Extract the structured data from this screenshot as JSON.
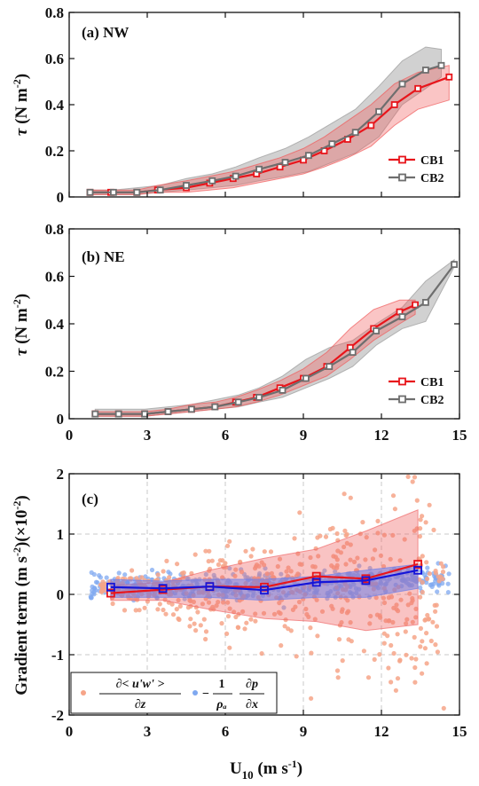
{
  "chart_data": [
    {
      "type": "line",
      "title": "(a) NW",
      "ylabel": "τ (N m⁻²)",
      "xlim": [
        0,
        15
      ],
      "ylim": [
        0,
        0.8
      ],
      "y_ticks": [
        "0",
        "0.2",
        "0.4",
        "0.6",
        "0.8"
      ],
      "grid": false,
      "legend_position": "lower-right",
      "series": [
        {
          "name": "CB1",
          "color": "#e8151b",
          "x": [
            0.8,
            1.6,
            2.6,
            3.4,
            4.5,
            5.4,
            6.3,
            7.2,
            8.1,
            9.0,
            9.8,
            10.7,
            11.6,
            12.5,
            13.4,
            14.6
          ],
          "y": [
            0.02,
            0.02,
            0.02,
            0.03,
            0.04,
            0.06,
            0.08,
            0.1,
            0.13,
            0.16,
            0.2,
            0.25,
            0.31,
            0.4,
            0.47,
            0.52
          ],
          "band_lower": [
            0.01,
            0.01,
            0.01,
            0.02,
            0.02,
            0.03,
            0.04,
            0.06,
            0.08,
            0.1,
            0.13,
            0.17,
            0.22,
            0.31,
            0.38,
            0.42
          ],
          "band_upper": [
            0.03,
            0.03,
            0.03,
            0.05,
            0.07,
            0.09,
            0.11,
            0.14,
            0.17,
            0.21,
            0.26,
            0.33,
            0.4,
            0.49,
            0.54,
            0.57
          ]
        },
        {
          "name": "CB2",
          "color": "#6e6e6e",
          "x": [
            0.8,
            1.7,
            2.6,
            3.5,
            4.5,
            5.5,
            6.4,
            7.3,
            8.3,
            9.2,
            10.1,
            11.0,
            11.9,
            12.8,
            13.7,
            14.3
          ],
          "y": [
            0.02,
            0.02,
            0.02,
            0.03,
            0.05,
            0.07,
            0.09,
            0.12,
            0.15,
            0.18,
            0.23,
            0.28,
            0.37,
            0.49,
            0.55,
            0.57
          ],
          "band_lower": [
            0.01,
            0.01,
            0.01,
            0.02,
            0.03,
            0.04,
            0.05,
            0.07,
            0.09,
            0.11,
            0.15,
            0.19,
            0.26,
            0.4,
            0.47,
            0.52
          ],
          "band_upper": [
            0.03,
            0.03,
            0.04,
            0.05,
            0.08,
            0.1,
            0.13,
            0.17,
            0.21,
            0.26,
            0.32,
            0.38,
            0.48,
            0.59,
            0.65,
            0.64
          ]
        }
      ]
    },
    {
      "type": "line",
      "title": "(b) NE",
      "ylabel": "τ (N m⁻²)",
      "xlim": [
        0,
        15
      ],
      "ylim": [
        0,
        0.8
      ],
      "x_ticks": [
        "0",
        "3",
        "6",
        "9",
        "12",
        "15"
      ],
      "y_ticks": [
        "0",
        "0.2",
        "0.4",
        "0.6",
        "0.8"
      ],
      "grid": false,
      "legend_position": "lower-right",
      "series": [
        {
          "name": "CB1",
          "color": "#e8151b",
          "x": [
            1.0,
            1.9,
            2.9,
            3.8,
            4.7,
            5.6,
            6.4,
            7.2,
            8.1,
            9.0,
            9.9,
            10.8,
            11.7,
            12.7,
            13.3
          ],
          "y": [
            0.02,
            0.02,
            0.02,
            0.03,
            0.04,
            0.05,
            0.07,
            0.09,
            0.13,
            0.17,
            0.22,
            0.3,
            0.38,
            0.45,
            0.48
          ],
          "band_lower": [
            0.01,
            0.01,
            0.01,
            0.02,
            0.03,
            0.04,
            0.05,
            0.07,
            0.1,
            0.14,
            0.18,
            0.25,
            0.33,
            0.4,
            0.44
          ],
          "band_upper": [
            0.03,
            0.03,
            0.03,
            0.04,
            0.06,
            0.07,
            0.09,
            0.12,
            0.16,
            0.21,
            0.28,
            0.38,
            0.46,
            0.5,
            0.5
          ]
        },
        {
          "name": "CB2",
          "color": "#6e6e6e",
          "x": [
            1.0,
            1.9,
            2.9,
            3.8,
            4.7,
            5.6,
            6.5,
            7.3,
            8.2,
            9.1,
            10.0,
            10.9,
            11.8,
            12.8,
            13.7,
            14.8
          ],
          "y": [
            0.02,
            0.02,
            0.02,
            0.03,
            0.04,
            0.05,
            0.07,
            0.09,
            0.12,
            0.17,
            0.22,
            0.28,
            0.37,
            0.43,
            0.49,
            0.65
          ],
          "band_lower": [
            0.01,
            0.01,
            0.01,
            0.02,
            0.03,
            0.04,
            0.05,
            0.07,
            0.09,
            0.13,
            0.17,
            0.22,
            0.31,
            0.38,
            0.41,
            0.64
          ],
          "band_upper": [
            0.04,
            0.04,
            0.04,
            0.05,
            0.06,
            0.08,
            0.1,
            0.13,
            0.18,
            0.25,
            0.3,
            0.33,
            0.4,
            0.47,
            0.58,
            0.67
          ]
        }
      ]
    },
    {
      "type": "scatter",
      "title": "(c)",
      "xlabel": "U₁₀ (m s⁻¹)",
      "ylabel": "Gradient term (m s⁻²)(×10⁻²)",
      "xlim": [
        0,
        15
      ],
      "ylim": [
        -2,
        2
      ],
      "x_ticks": [
        "0",
        "3",
        "6",
        "9",
        "12",
        "15"
      ],
      "y_ticks": [
        "-2",
        "-1",
        "0",
        "1",
        "2"
      ],
      "grid": true,
      "legend_position": "lower-left",
      "legend": [
        "∂<u'w'>/∂z",
        "−(1/ρₐ) ∂p/∂x"
      ],
      "series": [
        {
          "name": "∂<u'w'>/∂z",
          "color": "#e8151b",
          "scatter_color": "#f6a488",
          "x": [
            1.6,
            3.6,
            5.4,
            7.5,
            9.5,
            11.4,
            13.4
          ],
          "y": [
            0.02,
            0.08,
            0.13,
            0.12,
            0.3,
            0.26,
            0.5
          ],
          "band_lower": [
            -0.1,
            -0.1,
            -0.25,
            -0.4,
            -0.45,
            -0.6,
            -0.5
          ],
          "band_upper": [
            0.15,
            0.2,
            0.4,
            0.6,
            0.75,
            1.05,
            1.4
          ]
        },
        {
          "name": "−(1/ρₐ) ∂p/∂x",
          "color": "#1515d8",
          "scatter_color": "#7fa8f0",
          "x": [
            1.6,
            3.6,
            5.4,
            7.5,
            9.5,
            11.4,
            13.4
          ],
          "y": [
            0.12,
            0.1,
            0.13,
            0.07,
            0.2,
            0.23,
            0.4
          ],
          "band_lower": [
            -0.05,
            -0.05,
            -0.05,
            -0.1,
            -0.05,
            -0.05,
            0.1
          ],
          "band_upper": [
            0.25,
            0.22,
            0.25,
            0.25,
            0.3,
            0.4,
            0.5
          ]
        }
      ]
    }
  ]
}
